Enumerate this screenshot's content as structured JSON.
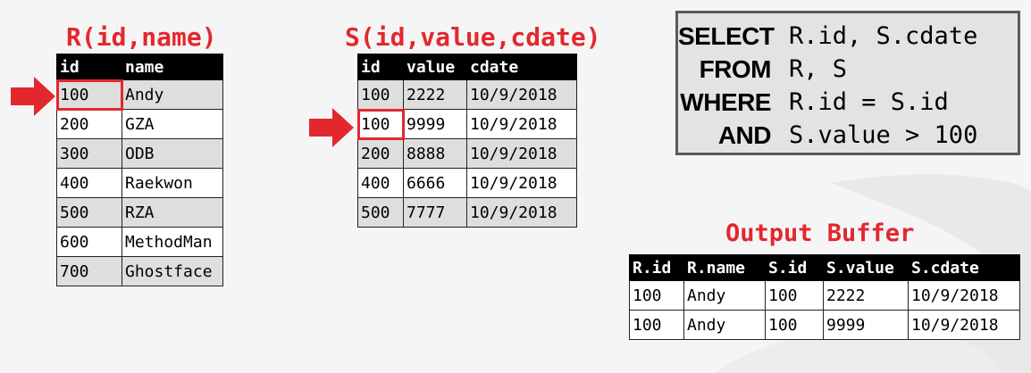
{
  "table_r": {
    "title": "R(id,name)",
    "columns": [
      "id",
      "name"
    ],
    "rows": [
      [
        "100",
        "Andy"
      ],
      [
        "200",
        "GZA"
      ],
      [
        "300",
        "ODB"
      ],
      [
        "400",
        "Raekwon"
      ],
      [
        "500",
        "RZA"
      ],
      [
        "600",
        "MethodMan"
      ],
      [
        "700",
        "Ghostface"
      ]
    ]
  },
  "table_s": {
    "title": "S(id,value,cdate)",
    "columns": [
      "id",
      "value",
      "cdate"
    ],
    "rows": [
      [
        "100",
        "2222",
        "10/9/2018"
      ],
      [
        "100",
        "9999",
        "10/9/2018"
      ],
      [
        "200",
        "8888",
        "10/9/2018"
      ],
      [
        "400",
        "6666",
        "10/9/2018"
      ],
      [
        "500",
        "7777",
        "10/9/2018"
      ]
    ]
  },
  "query": {
    "lines": [
      {
        "keyword": "SELECT",
        "rest": "R.id, S.cdate"
      },
      {
        "keyword": "FROM",
        "rest": "R, S"
      },
      {
        "keyword": "WHERE",
        "rest": "R.id = S.id"
      },
      {
        "keyword": "AND",
        "rest": "S.value > 100"
      }
    ]
  },
  "output_buffer": {
    "title": "Output Buffer",
    "columns": [
      "R.id",
      "R.name",
      "S.id",
      "S.value",
      "S.cdate"
    ],
    "rows": [
      [
        "100",
        "Andy",
        "100",
        "2222",
        "10/9/2018"
      ],
      [
        "100",
        "Andy",
        "100",
        "9999",
        "10/9/2018"
      ]
    ]
  },
  "colors": {
    "accent_red": "#e2282e",
    "header_black": "#000000",
    "row_gray": "#dedede",
    "sql_box_bg": "#e3e3e3"
  },
  "pointers": {
    "r_row_index": 0,
    "s_row_index": 1
  }
}
